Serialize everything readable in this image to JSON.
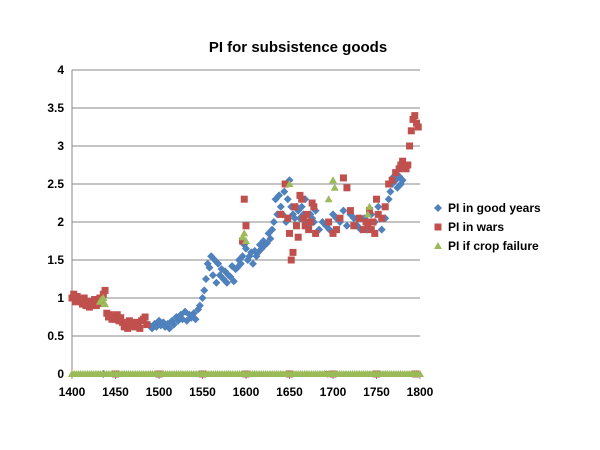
{
  "chart_data": {
    "type": "scatter",
    "title": "PI for subsistence goods",
    "xlabel": "",
    "ylabel": "",
    "xlim": [
      1400,
      1800
    ],
    "ylim": [
      0,
      4
    ],
    "x_ticks": [
      "1400",
      "1450",
      "1500",
      "1550",
      "1600",
      "1650",
      "1700",
      "1750",
      "1800"
    ],
    "y_ticks": [
      "0",
      "0.5",
      "1",
      "1.5",
      "2",
      "2.5",
      "3",
      "3.5",
      "4"
    ],
    "grid": "horizontal",
    "legend_position": "right",
    "series": [
      {
        "name": "PI in good years",
        "marker": "diamond",
        "color": "#4F81BD",
        "x": [
          1490,
          1492,
          1495,
          1497,
          1500,
          1502,
          1505,
          1507,
          1510,
          1512,
          1515,
          1517,
          1520,
          1522,
          1525,
          1527,
          1530,
          1532,
          1535,
          1537,
          1540,
          1542,
          1545,
          1547,
          1550,
          1552,
          1554,
          1556,
          1558,
          1560,
          1562,
          1564,
          1566,
          1568,
          1570,
          1572,
          1574,
          1576,
          1578,
          1580,
          1582,
          1584,
          1586,
          1588,
          1590,
          1592,
          1594,
          1596,
          1598,
          1600,
          1602,
          1604,
          1606,
          1608,
          1610,
          1612,
          1614,
          1616,
          1618,
          1620,
          1622,
          1624,
          1626,
          1628,
          1630,
          1632,
          1634,
          1636,
          1638,
          1640,
          1642,
          1644,
          1646,
          1648,
          1650,
          1652,
          1654,
          1656,
          1658,
          1660,
          1662,
          1664,
          1666,
          1668,
          1670,
          1672,
          1674,
          1676,
          1678,
          1680,
          1684,
          1688,
          1692,
          1696,
          1700,
          1704,
          1708,
          1712,
          1716,
          1720,
          1724,
          1728,
          1732,
          1736,
          1740,
          1744,
          1748,
          1752,
          1756,
          1760,
          1764,
          1766,
          1768,
          1770,
          1772,
          1774,
          1776,
          1778,
          1780
        ],
        "y": [
          0.63,
          0.6,
          0.66,
          0.62,
          0.7,
          0.64,
          0.68,
          0.62,
          0.66,
          0.6,
          0.7,
          0.65,
          0.75,
          0.7,
          0.78,
          0.72,
          0.82,
          0.7,
          0.78,
          0.74,
          0.8,
          0.72,
          0.85,
          0.9,
          1.0,
          1.1,
          1.25,
          1.45,
          1.4,
          1.55,
          1.3,
          1.5,
          1.2,
          1.45,
          1.3,
          1.38,
          1.25,
          1.35,
          1.2,
          1.3,
          1.28,
          1.42,
          1.22,
          1.38,
          1.4,
          1.5,
          1.45,
          1.55,
          1.7,
          1.65,
          1.5,
          1.55,
          1.6,
          1.45,
          1.62,
          1.55,
          1.6,
          1.7,
          1.65,
          1.75,
          1.7,
          1.72,
          1.85,
          1.78,
          1.9,
          2.0,
          2.3,
          2.1,
          2.35,
          2.2,
          2.1,
          2.4,
          2.0,
          2.3,
          2.55,
          2.2,
          2.1,
          2.05,
          2.2,
          2.15,
          2.05,
          2.2,
          2.1,
          2.3,
          2.0,
          1.95,
          2.1,
          2.05,
          2.0,
          2.15,
          1.9,
          2.0,
          1.95,
          1.9,
          2.1,
          2.05,
          2.0,
          2.15,
          1.95,
          2.1,
          2.05,
          1.95,
          1.9,
          2.05,
          1.9,
          2.1,
          2.0,
          2.2,
          1.9,
          2.05,
          2.3,
          2.4,
          2.5,
          2.6,
          2.55,
          2.45,
          2.6,
          2.5,
          2.55
        ]
      },
      {
        "name": "PI in wars",
        "marker": "square",
        "color": "#C0504D",
        "x": [
          1400,
          1402,
          1404,
          1406,
          1408,
          1410,
          1412,
          1414,
          1416,
          1418,
          1420,
          1422,
          1424,
          1426,
          1428,
          1430,
          1432,
          1434,
          1436,
          1438,
          1440,
          1442,
          1444,
          1446,
          1448,
          1450,
          1452,
          1454,
          1456,
          1458,
          1460,
          1462,
          1464,
          1466,
          1468,
          1470,
          1472,
          1474,
          1476,
          1478,
          1480,
          1482,
          1484,
          1486,
          1596,
          1598,
          1600,
          1640,
          1645,
          1648,
          1650,
          1652,
          1654,
          1656,
          1658,
          1660,
          1662,
          1664,
          1666,
          1668,
          1670,
          1672,
          1674,
          1676,
          1678,
          1680,
          1695,
          1700,
          1704,
          1708,
          1712,
          1716,
          1720,
          1724,
          1730,
          1735,
          1738,
          1740,
          1742,
          1744,
          1746,
          1748,
          1750,
          1752,
          1756,
          1760,
          1764,
          1768,
          1772,
          1776,
          1778,
          1780,
          1782,
          1784,
          1786,
          1788,
          1790,
          1792,
          1794,
          1796,
          1798
        ],
        "y": [
          1.0,
          1.05,
          0.95,
          1.02,
          0.98,
          0.96,
          0.92,
          1.0,
          0.9,
          0.95,
          0.88,
          0.92,
          0.95,
          0.98,
          0.9,
          0.93,
          1.0,
          0.97,
          1.05,
          1.1,
          0.8,
          0.75,
          0.78,
          0.72,
          0.75,
          0.72,
          0.78,
          0.7,
          0.74,
          0.68,
          0.62,
          0.65,
          0.6,
          0.7,
          0.64,
          0.66,
          0.62,
          0.68,
          0.65,
          0.6,
          0.7,
          0.72,
          0.75,
          0.65,
          1.75,
          2.3,
          1.95,
          2.1,
          2.5,
          2.05,
          1.85,
          1.5,
          1.6,
          2.2,
          1.95,
          1.8,
          2.35,
          2.3,
          2.05,
          1.95,
          2.1,
          1.9,
          2.0,
          2.25,
          2.2,
          1.85,
          2.0,
          1.85,
          1.9,
          2.05,
          2.58,
          2.45,
          2.15,
          1.95,
          2.05,
          1.9,
          2.0,
          1.95,
          2.15,
          1.9,
          2.0,
          1.85,
          2.3,
          2.1,
          2.05,
          2.2,
          2.5,
          2.55,
          2.65,
          2.7,
          2.75,
          2.8,
          2.75,
          2.7,
          2.75,
          3.0,
          3.2,
          3.35,
          3.4,
          3.3,
          3.25
        ]
      },
      {
        "name": "PI if crop failure",
        "marker": "triangle",
        "color": "#9BBB59",
        "x": [
          1432,
          1434,
          1436,
          1438,
          1596,
          1598,
          1600,
          1650,
          1695,
          1700,
          1702,
          1740,
          1742
        ],
        "y": [
          0.95,
          0.98,
          1.0,
          0.92,
          1.8,
          1.85,
          1.75,
          2.5,
          2.3,
          2.55,
          2.45,
          2.1,
          2.2
        ]
      }
    ],
    "zero_baseline_series": [
      {
        "name": "PI in good years",
        "marker": "diamond",
        "color": "#4F81BD",
        "x": [
          1436,
          1650
        ],
        "y": [
          0,
          0
        ]
      },
      {
        "name": "PI in wars",
        "marker": "square",
        "color": "#C0504D",
        "x": [
          1450,
          1500,
          1550,
          1600,
          1650,
          1700,
          1750,
          1795
        ],
        "y": [
          0,
          0,
          0,
          0,
          0,
          0,
          0,
          0
        ]
      },
      {
        "name": "PI if crop failure",
        "marker": "triangle",
        "color": "#9BBB59",
        "x": [
          1400,
          1430,
          1460,
          1490,
          1520,
          1550,
          1580,
          1610,
          1640,
          1670,
          1700,
          1730,
          1760,
          1790
        ],
        "y": [
          0,
          0,
          0,
          0,
          0,
          0,
          0,
          0,
          0,
          0,
          0,
          0,
          0,
          0
        ]
      },
      {
        "name": "PI in wars",
        "marker": "triangle-down",
        "color": "#C0504D",
        "x": [
          1694
        ],
        "y": [
          0
        ]
      }
    ]
  }
}
